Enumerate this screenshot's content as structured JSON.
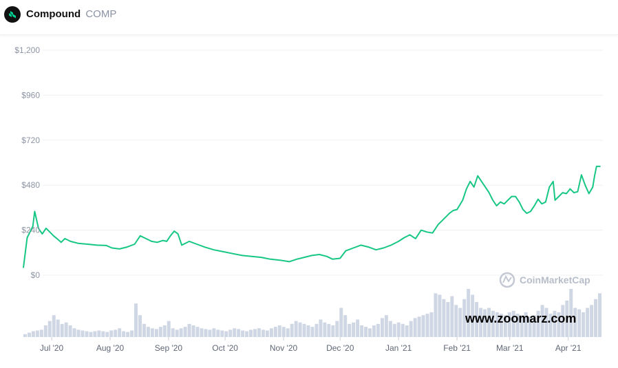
{
  "header": {
    "name": "Compound",
    "symbol": "COMP",
    "logo_icon": "compound-logo-icon"
  },
  "watermark": {
    "text": "CoinMarketCap"
  },
  "site_overlay": {
    "text": "www.zoomarz.com"
  },
  "colors": {
    "line": "#16c784",
    "volume": "#cfd6e4",
    "grid": "#eef0f4"
  },
  "chart_data": {
    "type": "line",
    "title": "",
    "xlabel": "",
    "ylabel": "",
    "ylim": [
      0,
      1200
    ],
    "yticks": [
      0,
      240,
      480,
      720,
      960,
      1200
    ],
    "ytick_labels": [
      "$0",
      "$240",
      "$480",
      "$720",
      "$960",
      "$1,200"
    ],
    "xticks": [
      "2020-07-01",
      "2020-08-01",
      "2020-09-01",
      "2020-10-01",
      "2020-11-01",
      "2020-12-01",
      "2021-01-01",
      "2021-02-01",
      "2021-03-01",
      "2021-04-01"
    ],
    "xtick_labels": [
      "Jul '20",
      "Aug '20",
      "Sep '20",
      "Oct '20",
      "Nov '20",
      "Dec '20",
      "Jan '21",
      "Feb '21",
      "Mar '21",
      "Apr '21"
    ],
    "xlim": [
      "2020-06-16",
      "2021-04-19"
    ],
    "grid": true,
    "series": [
      {
        "values": [
          [
            "2020-06-16",
            40
          ],
          [
            "2020-06-18",
            200
          ],
          [
            "2020-06-21",
            260
          ],
          [
            "2020-06-22",
            340
          ],
          [
            "2020-06-24",
            250
          ],
          [
            "2020-06-26",
            220
          ],
          [
            "2020-06-28",
            250
          ],
          [
            "2020-06-30",
            230
          ],
          [
            "2020-07-02",
            210
          ],
          [
            "2020-07-05",
            185
          ],
          [
            "2020-07-06",
            175
          ],
          [
            "2020-07-08",
            195
          ],
          [
            "2020-07-11",
            180
          ],
          [
            "2020-07-15",
            170
          ],
          [
            "2020-07-20",
            165
          ],
          [
            "2020-07-25",
            160
          ],
          [
            "2020-07-30",
            158
          ],
          [
            "2020-08-02",
            145
          ],
          [
            "2020-08-06",
            140
          ],
          [
            "2020-08-10",
            150
          ],
          [
            "2020-08-14",
            165
          ],
          [
            "2020-08-17",
            210
          ],
          [
            "2020-08-20",
            195
          ],
          [
            "2020-08-23",
            180
          ],
          [
            "2020-08-26",
            175
          ],
          [
            "2020-08-29",
            185
          ],
          [
            "2020-08-31",
            180
          ],
          [
            "2020-09-02",
            210
          ],
          [
            "2020-09-04",
            235
          ],
          [
            "2020-09-06",
            220
          ],
          [
            "2020-09-08",
            160
          ],
          [
            "2020-09-12",
            180
          ],
          [
            "2020-09-16",
            165
          ],
          [
            "2020-09-20",
            150
          ],
          [
            "2020-09-25",
            135
          ],
          [
            "2020-09-30",
            125
          ],
          [
            "2020-10-05",
            115
          ],
          [
            "2020-10-10",
            105
          ],
          [
            "2020-10-15",
            100
          ],
          [
            "2020-10-20",
            95
          ],
          [
            "2020-10-25",
            85
          ],
          [
            "2020-10-30",
            80
          ],
          [
            "2020-11-04",
            72
          ],
          [
            "2020-11-08",
            85
          ],
          [
            "2020-11-12",
            95
          ],
          [
            "2020-11-16",
            105
          ],
          [
            "2020-11-20",
            110
          ],
          [
            "2020-11-24",
            100
          ],
          [
            "2020-11-27",
            85
          ],
          [
            "2020-12-01",
            90
          ],
          [
            "2020-12-04",
            130
          ],
          [
            "2020-12-08",
            145
          ],
          [
            "2020-12-12",
            160
          ],
          [
            "2020-12-16",
            150
          ],
          [
            "2020-12-20",
            135
          ],
          [
            "2020-12-24",
            145
          ],
          [
            "2020-12-28",
            160
          ],
          [
            "2021-01-01",
            180
          ],
          [
            "2021-01-04",
            200
          ],
          [
            "2021-01-07",
            215
          ],
          [
            "2021-01-10",
            195
          ],
          [
            "2021-01-13",
            240
          ],
          [
            "2021-01-16",
            230
          ],
          [
            "2021-01-19",
            225
          ],
          [
            "2021-01-22",
            270
          ],
          [
            "2021-01-25",
            300
          ],
          [
            "2021-01-28",
            330
          ],
          [
            "2021-01-30",
            345
          ],
          [
            "2021-02-01",
            350
          ],
          [
            "2021-02-04",
            400
          ],
          [
            "2021-02-06",
            460
          ],
          [
            "2021-02-08",
            500
          ],
          [
            "2021-02-10",
            470
          ],
          [
            "2021-02-12",
            530
          ],
          [
            "2021-02-14",
            500
          ],
          [
            "2021-02-16",
            470
          ],
          [
            "2021-02-18",
            440
          ],
          [
            "2021-02-20",
            400
          ],
          [
            "2021-02-22",
            370
          ],
          [
            "2021-02-24",
            390
          ],
          [
            "2021-02-26",
            380
          ],
          [
            "2021-02-28",
            400
          ],
          [
            "2021-03-02",
            420
          ],
          [
            "2021-03-04",
            420
          ],
          [
            "2021-03-06",
            390
          ],
          [
            "2021-03-08",
            350
          ],
          [
            "2021-03-10",
            330
          ],
          [
            "2021-03-12",
            340
          ],
          [
            "2021-03-14",
            370
          ],
          [
            "2021-03-16",
            405
          ],
          [
            "2021-03-18",
            380
          ],
          [
            "2021-03-20",
            390
          ],
          [
            "2021-03-22",
            470
          ],
          [
            "2021-03-24",
            500
          ],
          [
            "2021-03-25",
            400
          ],
          [
            "2021-03-27",
            420
          ],
          [
            "2021-03-29",
            440
          ],
          [
            "2021-03-31",
            435
          ],
          [
            "2021-04-02",
            460
          ],
          [
            "2021-04-04",
            440
          ],
          [
            "2021-04-06",
            445
          ],
          [
            "2021-04-08",
            535
          ],
          [
            "2021-04-10",
            480
          ],
          [
            "2021-04-12",
            435
          ],
          [
            "2021-04-14",
            470
          ],
          [
            "2021-04-15",
            530
          ],
          [
            "2021-04-16",
            580
          ],
          [
            "2021-04-18",
            580
          ]
        ]
      }
    ],
    "volume_bars": [
      4,
      6,
      8,
      9,
      10,
      16,
      22,
      30,
      24,
      18,
      20,
      16,
      12,
      10,
      9,
      8,
      7,
      8,
      9,
      8,
      7,
      9,
      10,
      12,
      8,
      7,
      9,
      46,
      30,
      18,
      14,
      12,
      11,
      14,
      16,
      22,
      12,
      10,
      12,
      14,
      18,
      16,
      14,
      12,
      11,
      10,
      12,
      10,
      9,
      8,
      10,
      12,
      11,
      9,
      8,
      10,
      11,
      12,
      10,
      9,
      12,
      14,
      16,
      14,
      12,
      18,
      22,
      20,
      18,
      16,
      14,
      18,
      24,
      20,
      18,
      16,
      22,
      40,
      30,
      18,
      20,
      24,
      16,
      14,
      12,
      16,
      18,
      26,
      30,
      22,
      18,
      20,
      18,
      16,
      22,
      26,
      28,
      30,
      32,
      34,
      60,
      58,
      52,
      48,
      56,
      44,
      40,
      52,
      66,
      58,
      48,
      40,
      38,
      40,
      36,
      34,
      32,
      30,
      34,
      36,
      32,
      30,
      34,
      28,
      30,
      36,
      44,
      40,
      32,
      36,
      34,
      44,
      50,
      66,
      40,
      38,
      34,
      40,
      44,
      52,
      60
    ]
  }
}
